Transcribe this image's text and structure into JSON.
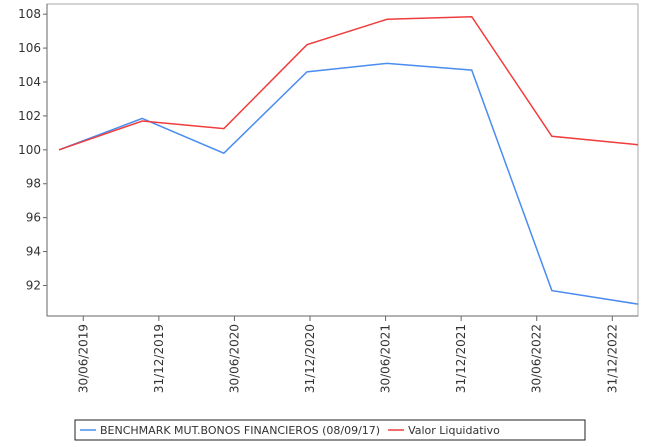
{
  "chart_data": {
    "type": "line",
    "x": [
      2019.34,
      2019.89,
      2020.43,
      2020.98,
      2021.51,
      2022.07,
      2022.6,
      2023.17
    ],
    "series": [
      {
        "name": "BENCHMARK MUT.BONOS FINANCIEROS (08/09/17)",
        "color": "#4a8cf0",
        "values": [
          100,
          101.85,
          99.8,
          104.6,
          105.1,
          104.7,
          91.7,
          90.9
        ]
      },
      {
        "name": "Valor Liquidativo",
        "color": "#f03c3c",
        "values": [
          100,
          101.7,
          101.25,
          106.2,
          107.7,
          107.85,
          100.8,
          100.3
        ]
      }
    ],
    "xlim": [
      2019.26,
      2023.17
    ],
    "xticks": [
      {
        "value": 2019.5,
        "label": "30/06/2019"
      },
      {
        "value": 2020.0,
        "label": "31/12/2019"
      },
      {
        "value": 2020.5,
        "label": "30/06/2020"
      },
      {
        "value": 2021.0,
        "label": "31/12/2020"
      },
      {
        "value": 2021.5,
        "label": "30/06/2021"
      },
      {
        "value": 2022.0,
        "label": "31/12/2021"
      },
      {
        "value": 2022.5,
        "label": "30/06/2022"
      },
      {
        "value": 2023.0,
        "label": "31/12/2022"
      }
    ],
    "ylim": [
      90.2,
      108.6
    ],
    "yticks": [
      92,
      94,
      96,
      98,
      100,
      102,
      104,
      106,
      108
    ],
    "legend": "bottom"
  }
}
